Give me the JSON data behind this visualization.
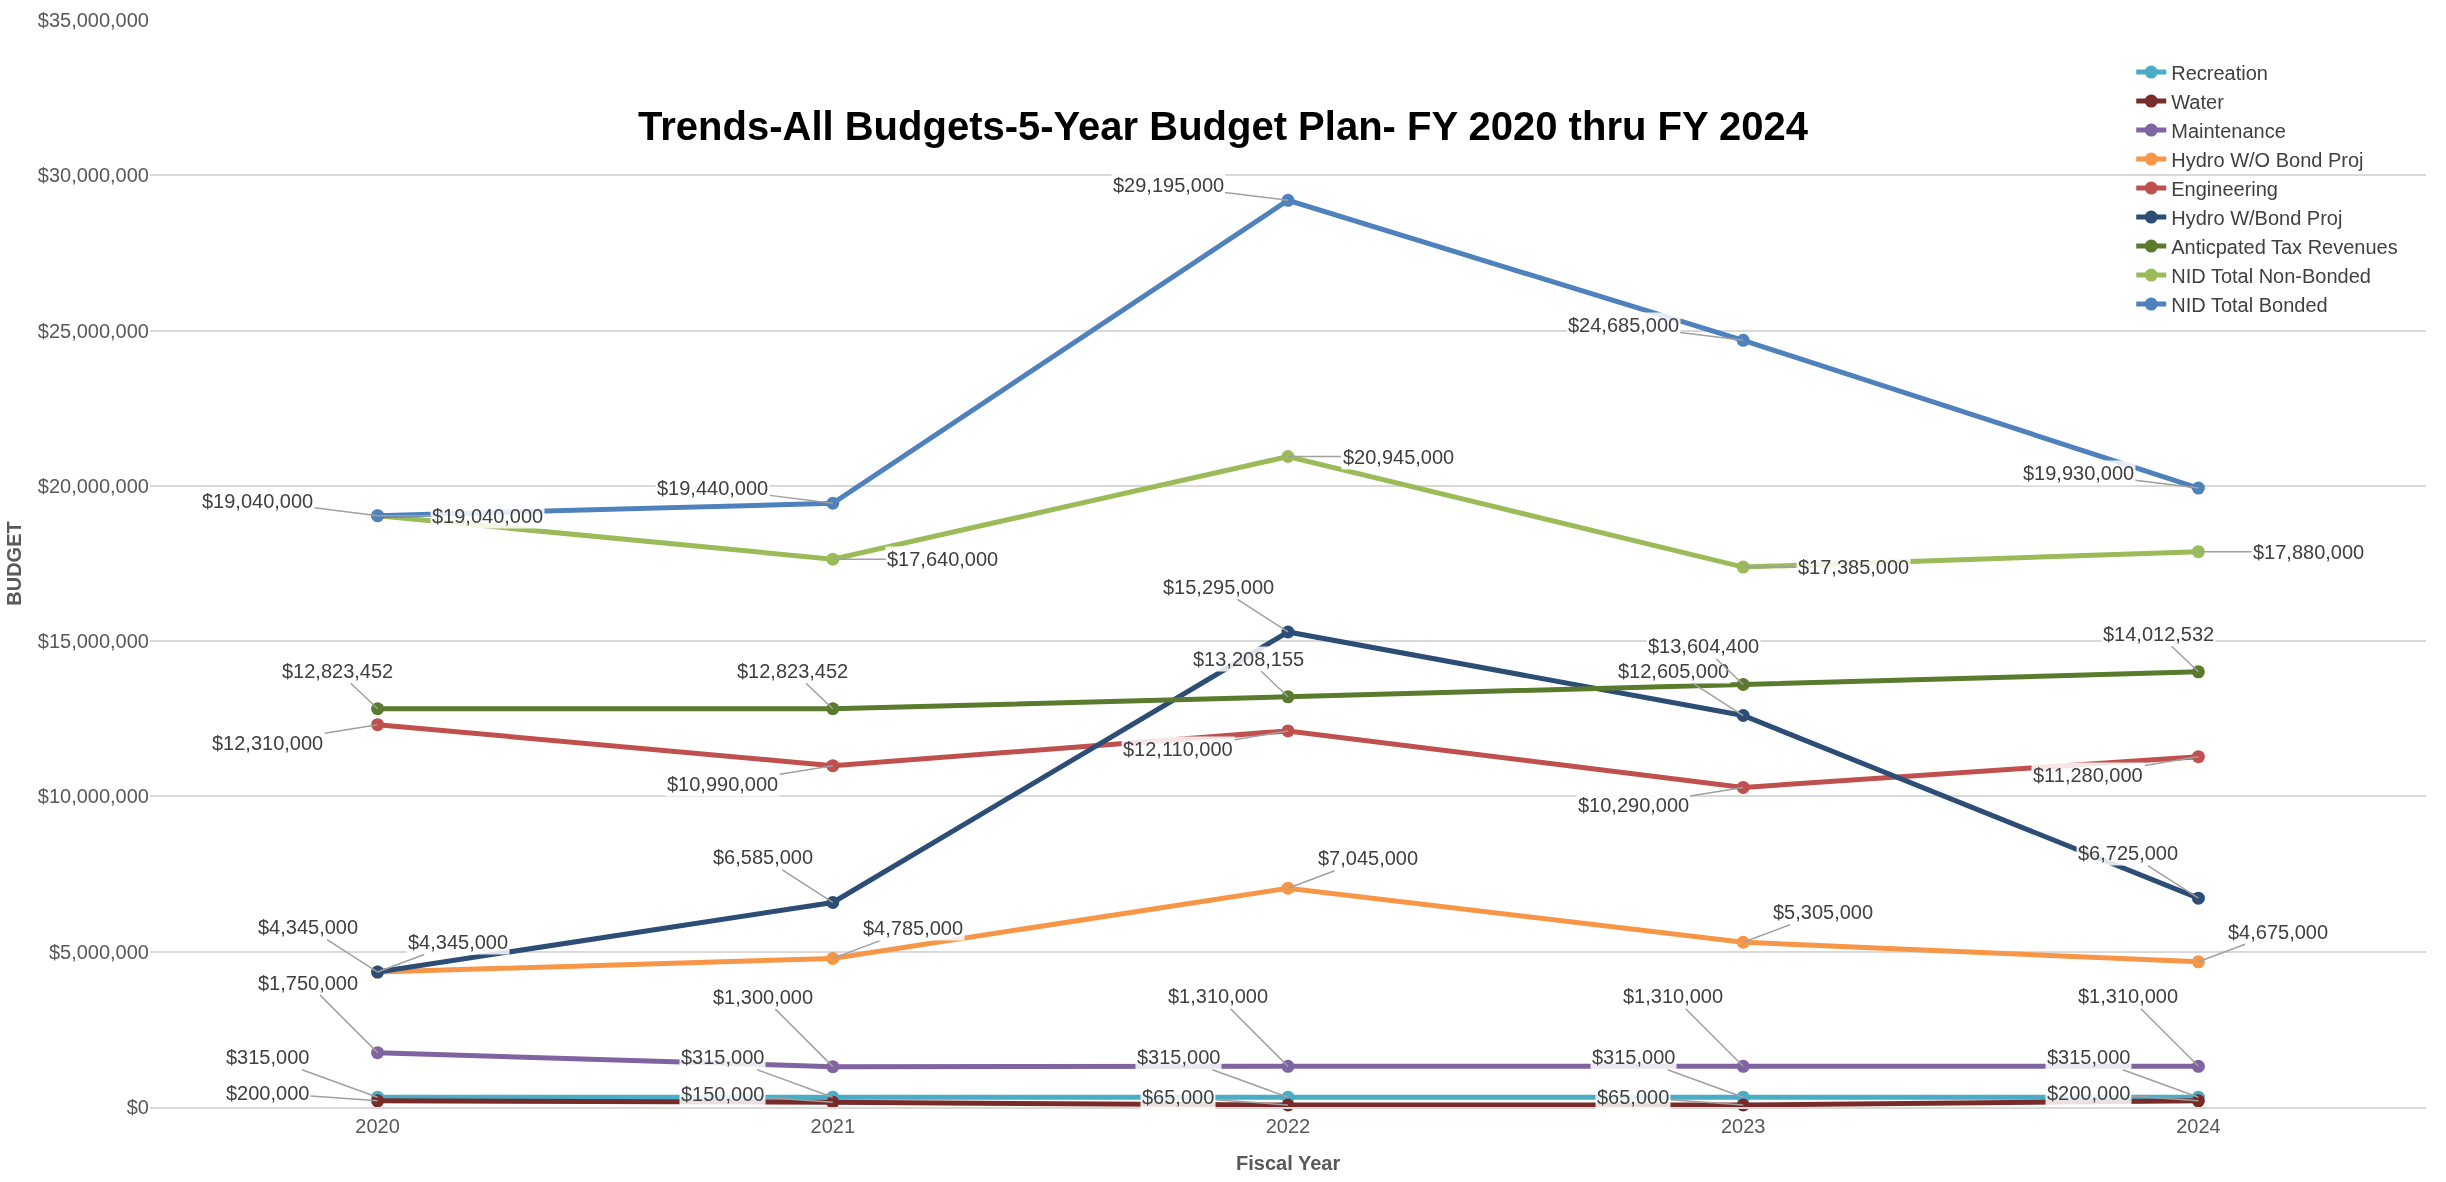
{
  "chart_data": {
    "type": "line",
    "title": "Trends-All Budgets-5-Year Budget Plan- FY 2020 thru FY 2024",
    "xlabel": "Fiscal Year",
    "ylabel": "BUDGET",
    "categories": [
      "2020",
      "2021",
      "2022",
      "2023",
      "2024"
    ],
    "ylim": [
      0,
      35000000
    ],
    "yticks": [
      {
        "value": 0,
        "label": "$0"
      },
      {
        "value": 5000000,
        "label": "$5,000,000"
      },
      {
        "value": 10000000,
        "label": "$10,000,000"
      },
      {
        "value": 15000000,
        "label": "$15,000,000"
      },
      {
        "value": 20000000,
        "label": "$20,000,000"
      },
      {
        "value": 25000000,
        "label": "$25,000,000"
      },
      {
        "value": 30000000,
        "label": "$30,000,000"
      },
      {
        "value": 35000000,
        "label": "$35,000,000"
      }
    ],
    "grid": "y",
    "legend": "top right",
    "marker": "circle",
    "line_style": "solid",
    "series": [
      {
        "name": "Recreation",
        "color": "#4bacc6",
        "values": [
          315000,
          315000,
          315000,
          315000,
          315000
        ],
        "value_labels": [
          "$315,000",
          "$315,000",
          "$315,000",
          "$315,000",
          "$315,000"
        ]
      },
      {
        "name": "Water",
        "color": "#772c2a",
        "values": [
          200000,
          150000,
          65000,
          65000,
          200000
        ],
        "value_labels": [
          "$200,000",
          "$150,000",
          "$65,000",
          "$65,000",
          "$200,000"
        ]
      },
      {
        "name": "Maintenance",
        "color": "#8064a2",
        "values": [
          1750000,
          1300000,
          1310000,
          1310000,
          1310000
        ],
        "value_labels": [
          "$1,750,000",
          "$1,300,000",
          "$1,310,000",
          "$1,310,000",
          "$1,310,000"
        ]
      },
      {
        "name": "Hydro W/O Bond Proj",
        "color": "#f79646",
        "values": [
          4345000,
          4785000,
          7045000,
          5305000,
          4675000
        ],
        "value_labels": [
          "$4,345,000",
          "$4,785,000",
          "$7,045,000",
          "$5,305,000",
          "$4,675,000"
        ]
      },
      {
        "name": "Engineering",
        "color": "#c0504d",
        "values": [
          12310000,
          10990000,
          12110000,
          10290000,
          11280000
        ],
        "value_labels": [
          "$12,310,000",
          "$10,990,000",
          "$12,110,000",
          "$10,290,000",
          "$11,280,000"
        ]
      },
      {
        "name": "Hydro W/Bond Proj",
        "color": "#2c4d75",
        "values": [
          4345000,
          6585000,
          15295000,
          12605000,
          6725000
        ],
        "value_labels": [
          "$4,345,000",
          "$6,585,000",
          "$15,295,000",
          "$12,605,000",
          "$6,725,000"
        ]
      },
      {
        "name": "Anticpated Tax Revenues",
        "color": "#5a7a2e",
        "values": [
          12823452,
          12823452,
          13208155,
          13604400,
          14012532
        ],
        "value_labels": [
          "$12,823,452",
          "$12,823,452",
          "$13,208,155",
          "$13,604,400",
          "$14,012,532"
        ]
      },
      {
        "name": "NID Total Non-Bonded",
        "color": "#9bbb59",
        "values": [
          19040000,
          17640000,
          20945000,
          17385000,
          17880000
        ],
        "value_labels": [
          "$19,040,000",
          "$17,640,000",
          "$20,945,000",
          "$17,385,000",
          "$17,880,000"
        ]
      },
      {
        "name": "NID Total Bonded",
        "color": "#4f81bd",
        "values": [
          19040000,
          19440000,
          29195000,
          24685000,
          19930000
        ],
        "value_labels": [
          "$19,040,000",
          "$19,440,000",
          "$29,195,000",
          "$24,685,000",
          "$19,930,000"
        ]
      }
    ]
  }
}
